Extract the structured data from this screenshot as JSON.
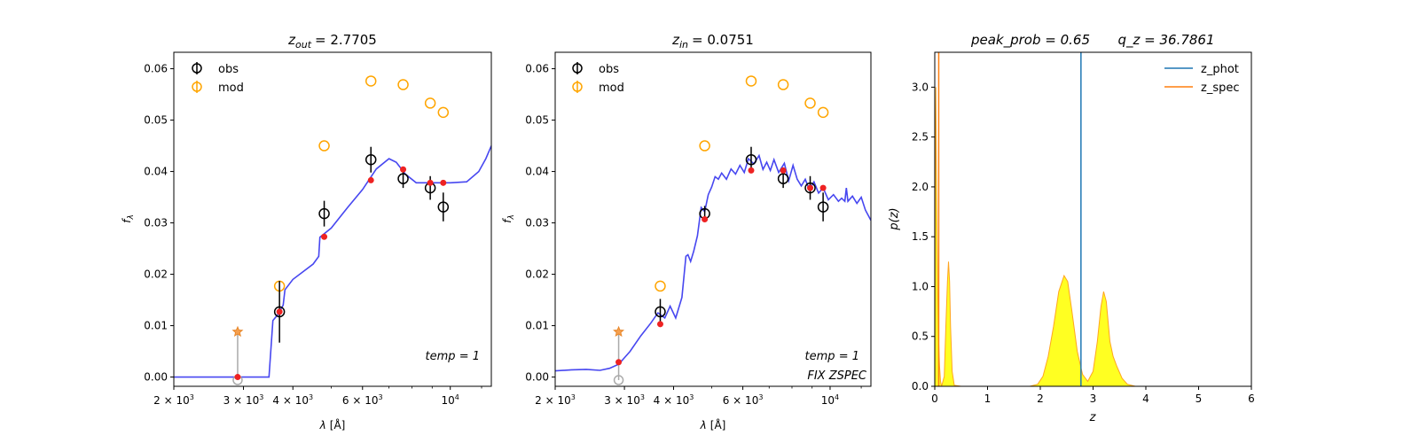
{
  "chart_data": [
    {
      "type": "scatter",
      "title_var": "z",
      "title_sub": "out",
      "title_value": "= 2.7705",
      "xlabel_sym": "λ",
      "xlabel_unit": "[Å]",
      "ylabel": "f",
      "ylabel_sub": "λ",
      "x_scale": "log",
      "xlim": [
        2000,
        12700
      ],
      "ylim": [
        -0.0018,
        0.0632
      ],
      "x_ticks": [
        {
          "value": 2000,
          "base": "2 × 10",
          "exp": "3"
        },
        {
          "value": 3000,
          "base": "3 × 10",
          "exp": "3"
        },
        {
          "value": 4000,
          "base": "4 × 10",
          "exp": "3"
        },
        {
          "value": 6000,
          "base": "6 × 10",
          "exp": "3"
        },
        {
          "value": 10000,
          "base": "10",
          "exp": "4"
        }
      ],
      "y_ticks": [
        "0.00",
        "0.01",
        "0.02",
        "0.03",
        "0.04",
        "0.05",
        "0.06"
      ],
      "y_tick_values": [
        0.0,
        0.01,
        0.02,
        0.03,
        0.04,
        0.05,
        0.06
      ],
      "legend": [
        {
          "label": "obs",
          "color": "#000000"
        },
        {
          "label": "mod",
          "color": "#FFA500"
        }
      ],
      "legend_position": "top-left",
      "annotation": "temp = 1",
      "annotation2": "",
      "obs": [
        {
          "x": 3700,
          "y": 0.0127,
          "err": 0.006
        },
        {
          "x": 4800,
          "y": 0.0318,
          "err": 0.0025
        },
        {
          "x": 6300,
          "y": 0.0423,
          "err": 0.0025
        },
        {
          "x": 7600,
          "y": 0.0386,
          "err": 0.0018
        },
        {
          "x": 8900,
          "y": 0.0368,
          "err": 0.0023
        },
        {
          "x": 9600,
          "y": 0.0331,
          "err": 0.0028
        }
      ],
      "obs_upper_limit": {
        "x": 2900,
        "y": -0.0006,
        "star_y": 0.0088
      },
      "mod": [
        {
          "x": 3700,
          "y": 0.0177
        },
        {
          "x": 4800,
          "y": 0.045
        },
        {
          "x": 6300,
          "y": 0.0576
        },
        {
          "x": 7600,
          "y": 0.0569
        },
        {
          "x": 8900,
          "y": 0.0533
        },
        {
          "x": 9600,
          "y": 0.0515
        }
      ],
      "model_points": [
        {
          "x": 2900,
          "y": 0.0
        },
        {
          "x": 3700,
          "y": 0.0127
        },
        {
          "x": 4800,
          "y": 0.0273
        },
        {
          "x": 6300,
          "y": 0.0383
        },
        {
          "x": 7600,
          "y": 0.0404
        },
        {
          "x": 8900,
          "y": 0.0378
        },
        {
          "x": 9600,
          "y": 0.0378
        }
      ],
      "sed_curve": [
        [
          2000,
          0.0
        ],
        [
          2650,
          0.0
        ],
        [
          3200,
          0.0
        ],
        [
          3480,
          0.0
        ],
        [
          3560,
          0.011
        ],
        [
          3650,
          0.012
        ],
        [
          3780,
          0.014
        ],
        [
          3820,
          0.017
        ],
        [
          4000,
          0.019
        ],
        [
          4500,
          0.022
        ],
        [
          4650,
          0.0235
        ],
        [
          4680,
          0.0272
        ],
        [
          5000,
          0.029
        ],
        [
          5500,
          0.033
        ],
        [
          6000,
          0.0365
        ],
        [
          6500,
          0.0405
        ],
        [
          7000,
          0.0425
        ],
        [
          7300,
          0.0418
        ],
        [
          7700,
          0.0395
        ],
        [
          8200,
          0.0378
        ],
        [
          9000,
          0.0378
        ],
        [
          10000,
          0.0378
        ],
        [
          11000,
          0.038
        ],
        [
          11800,
          0.04
        ],
        [
          12300,
          0.0425
        ],
        [
          12700,
          0.045
        ]
      ]
    },
    {
      "type": "scatter",
      "title_var": "z",
      "title_sub": "in",
      "title_value": "= 0.0751",
      "xlabel_sym": "λ",
      "xlabel_unit": "[Å]",
      "ylabel": "f",
      "ylabel_sub": "λ",
      "x_scale": "log",
      "xlim": [
        2000,
        12700
      ],
      "ylim": [
        -0.0018,
        0.0632
      ],
      "x_ticks": [
        {
          "value": 2000,
          "base": "2 × 10",
          "exp": "3"
        },
        {
          "value": 3000,
          "base": "3 × 10",
          "exp": "3"
        },
        {
          "value": 4000,
          "base": "4 × 10",
          "exp": "3"
        },
        {
          "value": 6000,
          "base": "6 × 10",
          "exp": "3"
        },
        {
          "value": 10000,
          "base": "10",
          "exp": "4"
        }
      ],
      "y_ticks": [
        "0.00",
        "0.01",
        "0.02",
        "0.03",
        "0.04",
        "0.05",
        "0.06"
      ],
      "y_tick_values": [
        0.0,
        0.01,
        0.02,
        0.03,
        0.04,
        0.05,
        0.06
      ],
      "legend": [
        {
          "label": "obs",
          "color": "#000000"
        },
        {
          "label": "mod",
          "color": "#FFA500"
        }
      ],
      "legend_position": "top-left",
      "annotation": "temp = 1",
      "annotation2": "FIX ZSPEC",
      "obs": [
        {
          "x": 3700,
          "y": 0.0127,
          "err": 0.0025
        },
        {
          "x": 4800,
          "y": 0.0318,
          "err": 0.0015
        },
        {
          "x": 6300,
          "y": 0.0423,
          "err": 0.0025
        },
        {
          "x": 7600,
          "y": 0.0386,
          "err": 0.0018
        },
        {
          "x": 8900,
          "y": 0.0368,
          "err": 0.0023
        },
        {
          "x": 9600,
          "y": 0.0331,
          "err": 0.0028
        }
      ],
      "obs_upper_limit": {
        "x": 2900,
        "y": -0.0006,
        "star_y": 0.0088
      },
      "mod": [
        {
          "x": 3700,
          "y": 0.0177
        },
        {
          "x": 4800,
          "y": 0.045
        },
        {
          "x": 6300,
          "y": 0.0576
        },
        {
          "x": 7600,
          "y": 0.0569
        },
        {
          "x": 8900,
          "y": 0.0533
        },
        {
          "x": 9600,
          "y": 0.0515
        }
      ],
      "model_points": [
        {
          "x": 2900,
          "y": 0.0029
        },
        {
          "x": 3700,
          "y": 0.0103
        },
        {
          "x": 4800,
          "y": 0.0307
        },
        {
          "x": 6300,
          "y": 0.0402
        },
        {
          "x": 7600,
          "y": 0.0402
        },
        {
          "x": 8900,
          "y": 0.0368
        },
        {
          "x": 9600,
          "y": 0.0368
        }
      ],
      "sed_curve": [
        [
          2000,
          0.0012
        ],
        [
          2200,
          0.0014
        ],
        [
          2400,
          0.0015
        ],
        [
          2600,
          0.0013
        ],
        [
          2750,
          0.0017
        ],
        [
          2900,
          0.0025
        ],
        [
          3100,
          0.005
        ],
        [
          3300,
          0.008
        ],
        [
          3500,
          0.0105
        ],
        [
          3650,
          0.0125
        ],
        [
          3800,
          0.0115
        ],
        [
          3920,
          0.0138
        ],
        [
          4050,
          0.0115
        ],
        [
          4200,
          0.0155
        ],
        [
          4300,
          0.0235
        ],
        [
          4350,
          0.0238
        ],
        [
          4420,
          0.0225
        ],
        [
          4500,
          0.0245
        ],
        [
          4600,
          0.0275
        ],
        [
          4700,
          0.033
        ],
        [
          4800,
          0.0322
        ],
        [
          4900,
          0.0355
        ],
        [
          5000,
          0.037
        ],
        [
          5100,
          0.039
        ],
        [
          5200,
          0.0385
        ],
        [
          5300,
          0.0397
        ],
        [
          5450,
          0.0385
        ],
        [
          5600,
          0.0405
        ],
        [
          5750,
          0.0395
        ],
        [
          5900,
          0.0412
        ],
        [
          6050,
          0.0398
        ],
        [
          6200,
          0.0425
        ],
        [
          6400,
          0.0415
        ],
        [
          6600,
          0.0431
        ],
        [
          6750,
          0.0404
        ],
        [
          6900,
          0.0418
        ],
        [
          7050,
          0.0402
        ],
        [
          7200,
          0.0423
        ],
        [
          7400,
          0.0398
        ],
        [
          7650,
          0.0416
        ],
        [
          7850,
          0.0382
        ],
        [
          8050,
          0.0412
        ],
        [
          8250,
          0.0385
        ],
        [
          8450,
          0.0372
        ],
        [
          8650,
          0.0385
        ],
        [
          8850,
          0.0365
        ],
        [
          9100,
          0.038
        ],
        [
          9350,
          0.0358
        ],
        [
          9600,
          0.0368
        ],
        [
          9900,
          0.0345
        ],
        [
          10200,
          0.0355
        ],
        [
          10500,
          0.0342
        ],
        [
          10700,
          0.0348
        ],
        [
          10900,
          0.0342
        ],
        [
          11000,
          0.0368
        ],
        [
          11100,
          0.0342
        ],
        [
          11400,
          0.0352
        ],
        [
          11700,
          0.0338
        ],
        [
          12000,
          0.035
        ],
        [
          12300,
          0.0325
        ],
        [
          12700,
          0.0305
        ]
      ]
    },
    {
      "type": "area",
      "title_left": "peak_prob = 0.65",
      "title_right": "q_z = 36.7861",
      "xlabel": "z",
      "ylabel": "p(z)",
      "xlim": [
        0,
        6
      ],
      "ylim": [
        0,
        3.35
      ],
      "x_ticks": [
        "0",
        "1",
        "2",
        "3",
        "4",
        "5",
        "6"
      ],
      "x_tick_values": [
        0,
        1,
        2,
        3,
        4,
        5,
        6
      ],
      "y_ticks": [
        "0.0",
        "0.5",
        "1.0",
        "1.5",
        "2.0",
        "2.5",
        "3.0"
      ],
      "y_tick_values": [
        0.0,
        0.5,
        1.0,
        1.5,
        2.0,
        2.5,
        3.0
      ],
      "legend": [
        {
          "label": "z_phot",
          "color": "#1f77b4"
        },
        {
          "label": "z_spec",
          "color": "#ff7f0e"
        }
      ],
      "legend_position": "top-right",
      "z_phot": 2.7705,
      "z_spec": 0.0751,
      "pdf": [
        [
          0.0,
          0.0
        ],
        [
          0.01,
          2.0
        ],
        [
          0.02,
          3.0
        ],
        [
          0.03,
          2.2
        ],
        [
          0.05,
          1.2
        ],
        [
          0.07,
          0.5
        ],
        [
          0.09,
          0.2
        ],
        [
          0.11,
          0.05
        ],
        [
          0.13,
          0.0
        ],
        [
          0.18,
          0.1
        ],
        [
          0.21,
          0.6
        ],
        [
          0.24,
          1.05
        ],
        [
          0.26,
          1.25
        ],
        [
          0.28,
          1.05
        ],
        [
          0.3,
          0.6
        ],
        [
          0.33,
          0.15
        ],
        [
          0.37,
          0.01
        ],
        [
          0.5,
          0.0
        ],
        [
          1.8,
          0.0
        ],
        [
          1.95,
          0.02
        ],
        [
          2.05,
          0.1
        ],
        [
          2.15,
          0.3
        ],
        [
          2.25,
          0.6
        ],
        [
          2.35,
          0.95
        ],
        [
          2.45,
          1.11
        ],
        [
          2.52,
          1.05
        ],
        [
          2.6,
          0.75
        ],
        [
          2.7,
          0.35
        ],
        [
          2.8,
          0.12
        ],
        [
          2.9,
          0.05
        ],
        [
          3.0,
          0.15
        ],
        [
          3.08,
          0.45
        ],
        [
          3.15,
          0.8
        ],
        [
          3.2,
          0.95
        ],
        [
          3.25,
          0.85
        ],
        [
          3.32,
          0.45
        ],
        [
          3.38,
          0.3
        ],
        [
          3.45,
          0.2
        ],
        [
          3.55,
          0.08
        ],
        [
          3.65,
          0.02
        ],
        [
          3.8,
          0.0
        ],
        [
          6.0,
          0.0
        ]
      ]
    }
  ]
}
